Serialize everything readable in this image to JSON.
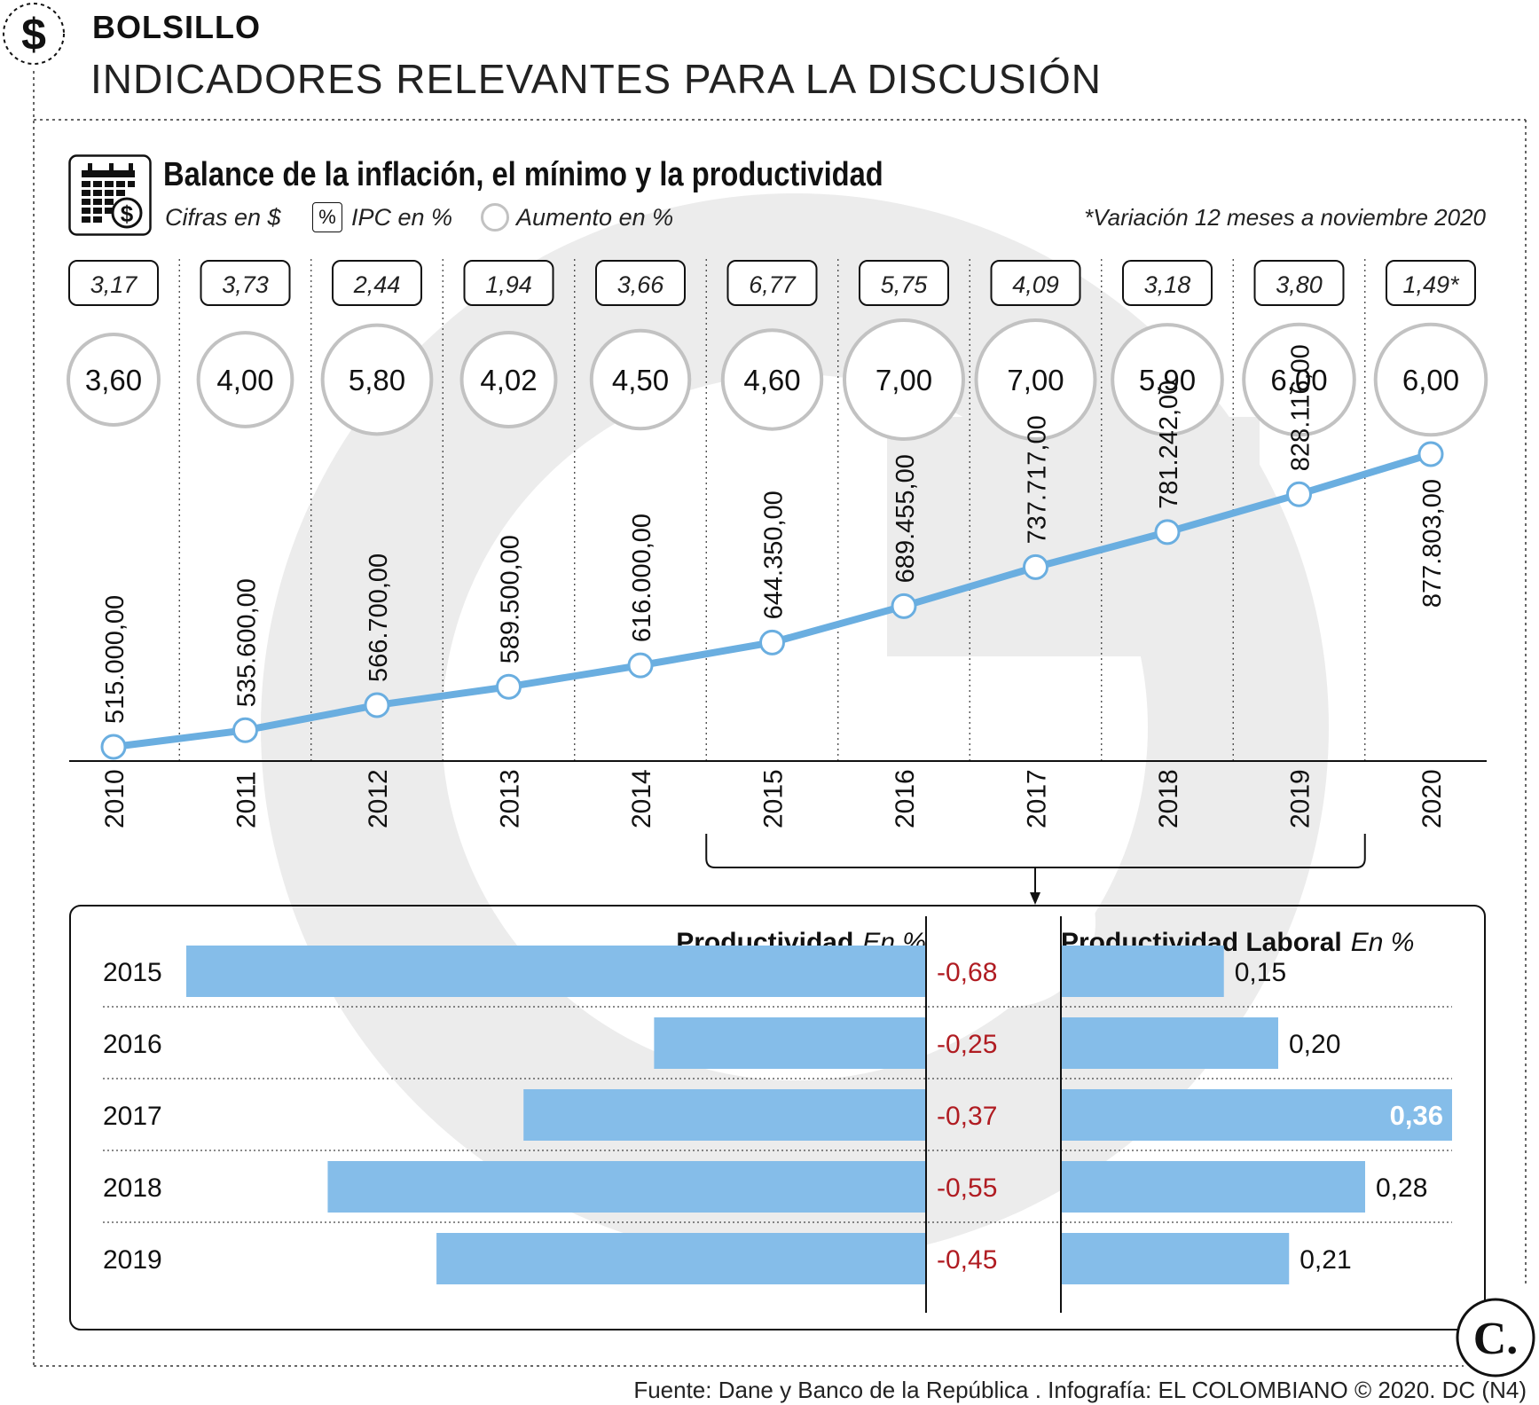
{
  "header": {
    "section": "BOLSILLO",
    "headline": "INDICADORES RELEVANTES PARA LA DISCUSIÓN",
    "icon": "dollar-icon"
  },
  "subtitle": "Balance de la inflación, el mínimo y la productividad",
  "legend": {
    "cifras": "Cifras en $",
    "ipc_symbol": "%",
    "ipc": "IPC en %",
    "aumento": "Aumento en %"
  },
  "footnote": "*Variación 12 meses a noviembre 2020",
  "source": "Fuente: Dane y Banco de la República . Infografía: EL COLOMBIANO © 2020. DC (N4)",
  "colors": {
    "line": "#6aaee0",
    "bar": "#85bde9",
    "negative_text": "#b01c22",
    "circle_border": "#c2c2c2",
    "watermark": "#ebebeb"
  },
  "chart_data": [
    {
      "type": "line",
      "title": "Balance de la inflación, el mínimo y la productividad",
      "x": [
        "2010",
        "2011",
        "2012",
        "2013",
        "2014",
        "2015",
        "2016",
        "2017",
        "2018",
        "2019",
        "2020"
      ],
      "series": [
        {
          "name": "Cifras en $",
          "values": [
            515000,
            535600,
            566700,
            589500,
            616000,
            644350,
            689455,
            737717,
            781242,
            828116,
            877803
          ]
        }
      ],
      "value_labels": [
        "515.000,00",
        "535.600,00",
        "566.700,00",
        "589.500,00",
        "616.000,00",
        "644.350,00",
        "689.455,00",
        "737.717,00",
        "781.242,00",
        "828.116,00",
        "877.803,00"
      ],
      "ipc": {
        "name": "IPC en %",
        "values": [
          3.17,
          3.73,
          2.44,
          1.94,
          3.66,
          6.77,
          5.75,
          4.09,
          3.18,
          3.8,
          1.49
        ],
        "labels": [
          "3,17",
          "3,73",
          "2,44",
          "1,94",
          "3,66",
          "6,77",
          "5,75",
          "4,09",
          "3,18",
          "3,80",
          "1,49*"
        ]
      },
      "aumento": {
        "name": "Aumento en %",
        "values": [
          3.6,
          4.0,
          5.8,
          4.02,
          4.5,
          4.6,
          7.0,
          7.0,
          5.9,
          6.0,
          6.0
        ],
        "labels": [
          "3,60",
          "4,00",
          "5,80",
          "4,02",
          "4,50",
          "4,60",
          "7,00",
          "7,00",
          "5,90",
          "6,00",
          "6,00"
        ]
      },
      "grid": false
    },
    {
      "type": "bar",
      "orientation": "horizontal",
      "title": "Productividad",
      "unit": "En %",
      "categories": [
        "2015",
        "2016",
        "2017",
        "2018",
        "2019"
      ],
      "values": [
        -0.68,
        -0.25,
        -0.37,
        -0.55,
        -0.45
      ],
      "labels": [
        "-0,68",
        "-0,25",
        "-0,37",
        "-0,55",
        "-0,45"
      ]
    },
    {
      "type": "bar",
      "orientation": "horizontal",
      "title": "Productividad Laboral",
      "unit": "En %",
      "categories": [
        "2015",
        "2016",
        "2017",
        "2018",
        "2019"
      ],
      "values": [
        0.15,
        0.2,
        0.36,
        0.28,
        0.21
      ],
      "labels": [
        "0,15",
        "0,20",
        "0,36",
        "0,28",
        "0,21"
      ]
    }
  ],
  "logo": "C."
}
